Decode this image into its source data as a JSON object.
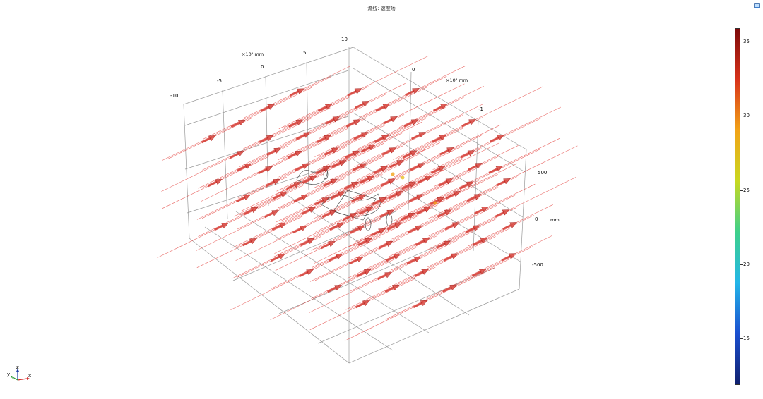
{
  "title": "流线: 速度场",
  "chart_data": {
    "type": "scatter",
    "title": "流线: 速度场",
    "x_axis": {
      "label": "×10³ mm",
      "ticks": [
        "0",
        "-1"
      ]
    },
    "y_axis": {
      "label": "×10² mm",
      "ticks": [
        "-10",
        "-5",
        "0",
        "5",
        "10"
      ]
    },
    "z_axis": {
      "label": "mm",
      "ticks": [
        "500",
        "0",
        "-500"
      ]
    },
    "colorbar": {
      "ticks": [
        "35",
        "30",
        "25",
        "20",
        "15"
      ],
      "range": [
        12,
        36
      ],
      "colormap": [
        "#10206e",
        "#1a4fd0",
        "#23b6e8",
        "#3ed08a",
        "#c8d820",
        "#f2a317",
        "#d8321a",
        "#7d0a0a"
      ]
    },
    "series": [
      {
        "kind": "velocity-arrows",
        "color": "#d43b33",
        "value_range": [
          32,
          36
        ]
      },
      {
        "kind": "streamlines",
        "color": "#e23a35"
      }
    ]
  },
  "triad": {
    "x": "x",
    "y": "y",
    "z": "z"
  },
  "icons": {
    "export": "export-image-icon"
  }
}
